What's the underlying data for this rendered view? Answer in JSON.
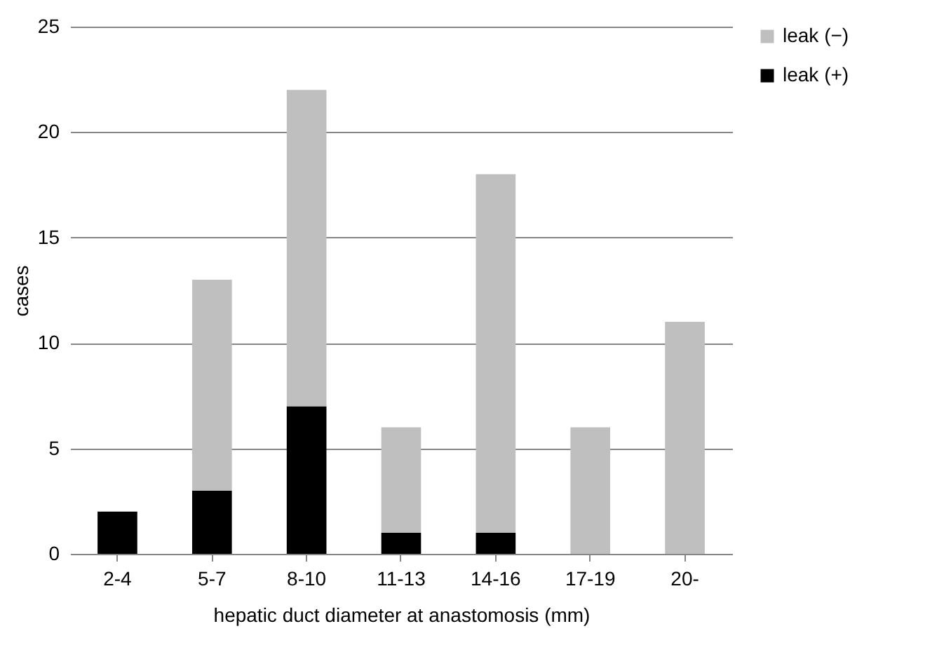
{
  "chart_data": {
    "type": "bar",
    "stacked": true,
    "xlabel": "hepatic duct diameter at anastomosis (mm)",
    "ylabel": "cases",
    "categories": [
      "2-4",
      "5-7",
      "8-10",
      "11-13",
      "14-16",
      "17-19",
      "20-"
    ],
    "series": [
      {
        "name": "leak (+)",
        "color": "#000000",
        "values": [
          2,
          3,
          7,
          1,
          1,
          0,
          0
        ]
      },
      {
        "name": "leak (−)",
        "color": "#bfbfbf",
        "values": [
          0,
          10,
          15,
          5,
          17,
          6,
          11
        ]
      }
    ],
    "ylim": [
      0,
      25
    ],
    "yticks": [
      0,
      5,
      10,
      15,
      20,
      25
    ],
    "grid": "y",
    "legend": "right"
  }
}
